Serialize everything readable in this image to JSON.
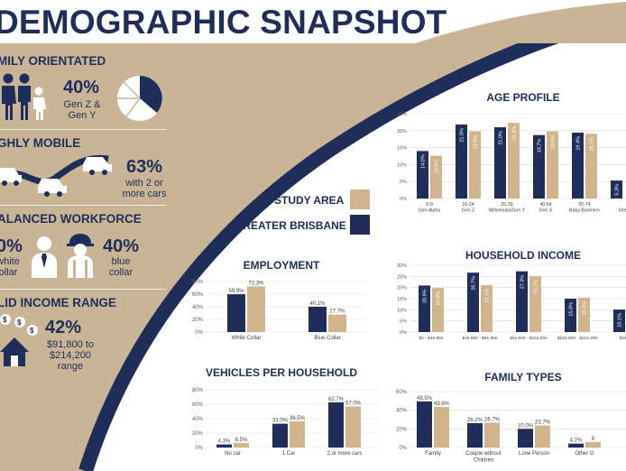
{
  "header": {
    "title": "DEMOGRAPHIC SNAPSHOT"
  },
  "colors": {
    "navy": "#1f2d5a",
    "tan": "#d2b48c",
    "beige": "#c9b596",
    "grid": "#d9d9d9"
  },
  "left_panel": {
    "family": {
      "heading": "MILY ORIENTATED",
      "value": "40%",
      "caption_line1": "Gen Z &",
      "caption_line2": "Gen Y",
      "icon": "family-icon",
      "pie_icon": "pie-icon"
    },
    "mobile": {
      "heading": "GHLY MOBILE",
      "value": "63%",
      "caption_line1": "with 2 or",
      "caption_line2": "more cars",
      "icon": "car-road-icon"
    },
    "workforce": {
      "heading": "ALANCED WORKFORCE",
      "left_value": "0%",
      "left_line1": "white",
      "left_line2": "ollar",
      "right_value": "40%",
      "right_line1": "blue",
      "right_line2": "collar",
      "icon_left": "office-worker-icon",
      "icon_right": "hard-hat-worker-icon"
    },
    "income": {
      "heading": "LID INCOME RANGE",
      "value": "42%",
      "caption_line1": "$91,800 to",
      "caption_line2": "$214,200",
      "caption_line3": "range",
      "icon": "house-money-icon"
    }
  },
  "legend": {
    "study_area": "STUDY AREA",
    "greater_brisbane": "GREATER BRISBANE"
  },
  "chart_data": [
    {
      "id": "age",
      "type": "bar",
      "title": "AGE PROFILE",
      "categories": [
        [
          "0-9",
          "Gen Alpha"
        ],
        [
          "10-24",
          "Gen Z"
        ],
        [
          "25-39",
          "Millennials/Gen Y"
        ],
        [
          "40-54",
          "Gen X"
        ],
        [
          "55-74",
          "Baby Boomers"
        ],
        [
          "",
          "Inter"
        ]
      ],
      "series": [
        {
          "name": "GREATER BRISBANE",
          "values": [
            14.0,
            21.8,
            21.0,
            18.7,
            19.4,
            5.3
          ],
          "labels": [
            "14.0%",
            "21.8%",
            "21.0%",
            "18.7%",
            "19.4%",
            "5.3%"
          ]
        },
        {
          "name": "STUDY AREA",
          "values": [
            12.6,
            19.8,
            22.3,
            19.8,
            19.1,
            null
          ],
          "labels": [
            "12.6%",
            "19.8%",
            "22.3%",
            "19.8%",
            "19.1%",
            ""
          ]
        }
      ],
      "ylim": [
        0,
        25
      ],
      "yticks": [
        "0%",
        "5%",
        "10%",
        "15%",
        "20%",
        "25%"
      ],
      "label_style": "inside-vertical"
    },
    {
      "id": "income",
      "type": "bar",
      "title": "HOUSEHOLD INCOME",
      "categories": [
        [
          "$0 - $46,960"
        ],
        [
          "$46,960 - $91,800"
        ],
        [
          "$91,800 - $153,000"
        ],
        [
          "$153,000 - $214,200"
        ],
        [
          "$214,2"
        ]
      ],
      "series": [
        {
          "name": "GREATER BRISBANE",
          "values": [
            20.9,
            26.7,
            27.3,
            15.0,
            10.1
          ],
          "labels": [
            "20.9%",
            "26.7%",
            "27.3%",
            "15.0%",
            "10.1%"
          ]
        },
        {
          "name": "STUDY AREA",
          "values": [
            19.8,
            21.1,
            25.1,
            15.4,
            null
          ],
          "labels": [
            "19.8%",
            "21.1%",
            "25.1%",
            "15.4%",
            ""
          ]
        }
      ],
      "ylim": [
        0,
        30
      ],
      "yticks": [
        "0%",
        "5%",
        "10%",
        "15%",
        "20%",
        "25%",
        "30%"
      ],
      "label_style": "inside-vertical"
    },
    {
      "id": "employment",
      "type": "bar",
      "title": "EMPLOYMENT",
      "categories": [
        [
          "White Collar"
        ],
        [
          "Blue Collar"
        ]
      ],
      "series": [
        {
          "name": "GREATER BRISBANE",
          "values": [
            59.9,
            40.1
          ],
          "labels": [
            "59.9%",
            "40.1%"
          ]
        },
        {
          "name": "STUDY AREA",
          "values": [
            72.3,
            27.7
          ],
          "labels": [
            "72.3%",
            "27.7%"
          ]
        }
      ],
      "ylim": [
        0,
        80
      ],
      "yticks": [
        "0%",
        "20%",
        "40%",
        "60%",
        "80%"
      ],
      "label_style": "top"
    },
    {
      "id": "vehicles",
      "type": "bar",
      "title": "VEHICLES PER HOUSEHOLD",
      "categories": [
        [
          "No car"
        ],
        [
          "1 Car"
        ],
        [
          "2 or more cars"
        ]
      ],
      "series": [
        {
          "name": "GREATER BRISBANE",
          "values": [
            4.3,
            33.0,
            62.7
          ],
          "labels": [
            "4.3%",
            "33.0%",
            "62.7%"
          ]
        },
        {
          "name": "STUDY AREA",
          "values": [
            6.5,
            36.5,
            57.0
          ],
          "labels": [
            "6.5%",
            "36.5%",
            "57.0%"
          ]
        }
      ],
      "ylim": [
        0,
        80
      ],
      "yticks": [
        "0%",
        "20%",
        "40%",
        "60%",
        "80%"
      ],
      "label_style": "top"
    },
    {
      "id": "family",
      "type": "bar",
      "title": "FAMILY TYPES",
      "categories": [
        [
          "Family"
        ],
        [
          "Couple without",
          "Children"
        ],
        [
          "Lone Person"
        ],
        [
          "Other G"
        ]
      ],
      "series": [
        {
          "name": "GREATER BRISBANE",
          "values": [
            49.5,
            26.2,
            20.0,
            4.2
          ],
          "labels": [
            "49.5%",
            "26.2%",
            "20.0%",
            "4.2%"
          ]
        },
        {
          "name": "STUDY AREA",
          "values": [
            43.6,
            26.7,
            23.7,
            6.0
          ],
          "labels": [
            "43.6%",
            "26.7%",
            "23.7%",
            "6"
          ]
        }
      ],
      "ylim": [
        0,
        60
      ],
      "yticks": [
        "0%",
        "20%",
        "40%",
        "60%"
      ],
      "label_style": "top"
    }
  ]
}
